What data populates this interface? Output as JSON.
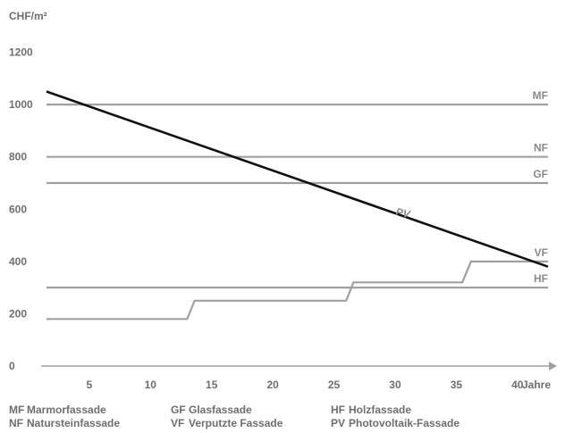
{
  "chart_data": {
    "type": "line",
    "ylabel": "CHF/m²",
    "xlabel": "Jahre",
    "xlim": [
      1.5,
      42.5
    ],
    "ylim": [
      0,
      1260
    ],
    "x_ticks": [
      5,
      10,
      15,
      20,
      25,
      30,
      35,
      40
    ],
    "y_ticks": [
      0,
      200,
      400,
      600,
      800,
      1000,
      1200
    ],
    "grid": false,
    "series": [
      {
        "name": "MF",
        "color": "#a0a0a0",
        "points": [
          [
            1.5,
            1000
          ],
          [
            42.5,
            1000
          ]
        ]
      },
      {
        "name": "NF",
        "color": "#a0a0a0",
        "points": [
          [
            1.5,
            800
          ],
          [
            42.5,
            800
          ]
        ]
      },
      {
        "name": "GF",
        "color": "#a0a0a0",
        "points": [
          [
            1.5,
            700
          ],
          [
            42.5,
            700
          ]
        ]
      },
      {
        "name": "VF",
        "color": "#a0a0a0",
        "points": [
          [
            1.5,
            180
          ],
          [
            13,
            180
          ],
          [
            13.6,
            250
          ],
          [
            26,
            250
          ],
          [
            26.6,
            320
          ],
          [
            35.5,
            320
          ],
          [
            36.2,
            400
          ],
          [
            42.5,
            400
          ]
        ]
      },
      {
        "name": "HF",
        "color": "#a0a0a0",
        "points": [
          [
            1.5,
            300
          ],
          [
            42.5,
            300
          ]
        ]
      },
      {
        "name": "PV",
        "color": "#111111",
        "points": [
          [
            1.5,
            1050
          ],
          [
            42.5,
            380
          ]
        ]
      }
    ]
  },
  "legend": [
    {
      "abbr": "MF",
      "name": "Marmorfassade"
    },
    {
      "abbr": "NF",
      "name": "Natursteinfassade"
    },
    {
      "abbr": "GF",
      "name": "Glasfassade"
    },
    {
      "abbr": "VF",
      "name": "Verputzte Fassade"
    },
    {
      "abbr": "HF",
      "name": "Holzfassade"
    },
    {
      "abbr": "PV",
      "name": "Photovoltaik-Fassade"
    }
  ]
}
